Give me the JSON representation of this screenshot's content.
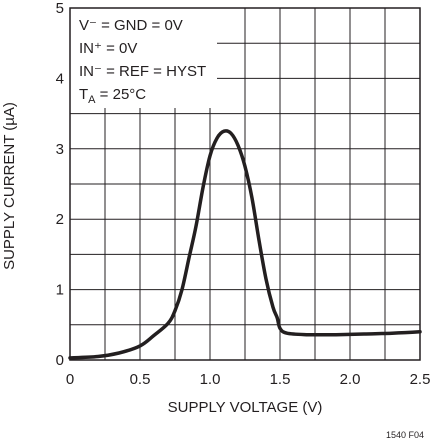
{
  "chart_data": {
    "type": "line",
    "xlabel": "SUPPLY VOLTAGE (V)",
    "ylabel": "SUPPLY CURRENT (µA)",
    "xlim": [
      0,
      2.5
    ],
    "ylim": [
      0,
      5
    ],
    "x_ticks": [
      0,
      0.5,
      1.0,
      1.5,
      2.0,
      2.5
    ],
    "x_tick_labels": [
      "0",
      "0.5",
      "1.0",
      "1.5",
      "2.0",
      "2.5"
    ],
    "y_ticks": [
      0,
      1,
      2,
      3,
      4,
      5
    ],
    "y_tick_labels": [
      "0",
      "1",
      "2",
      "3",
      "4",
      "5"
    ],
    "grid": true,
    "x_minor_step": 0.25,
    "y_minor_step": 0.5,
    "annotations": {
      "line1": "V⁻ = GND = 0V",
      "line2": "IN⁺ = 0V",
      "line3": "IN⁻ = REF = HYST",
      "line4_main": "T",
      "line4_sub": "A",
      "line4_rest": " = 25°C"
    },
    "figure_id": "1540 F04",
    "series": [
      {
        "color": "#231f20",
        "x": [
          0,
          0.2,
          0.35,
          0.5,
          0.6,
          0.7,
          0.75,
          0.8,
          0.85,
          0.9,
          0.95,
          1.0,
          1.05,
          1.1,
          1.15,
          1.2,
          1.25,
          1.3,
          1.35,
          1.4,
          1.45,
          1.48,
          1.5,
          1.55,
          1.7,
          1.9,
          2.1,
          2.3,
          2.5
        ],
        "y": [
          0.03,
          0.05,
          0.1,
          0.2,
          0.35,
          0.52,
          0.7,
          1.0,
          1.45,
          1.9,
          2.45,
          2.9,
          3.15,
          3.25,
          3.22,
          3.05,
          2.75,
          2.3,
          1.7,
          1.15,
          0.75,
          0.6,
          0.45,
          0.38,
          0.36,
          0.36,
          0.37,
          0.38,
          0.4
        ]
      }
    ]
  }
}
